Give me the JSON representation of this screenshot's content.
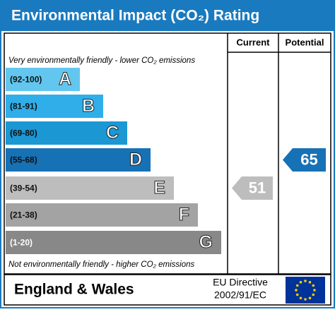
{
  "title": "Environmental Impact (CO₂) Rating",
  "columns": {
    "current": "Current",
    "potential": "Potential"
  },
  "top_note": "Very environmentally friendly - lower CO₂ emissions",
  "bottom_note": "Not environmentally friendly - higher CO₂ emissions",
  "bands": [
    {
      "range": "(92-100)",
      "letter": "A",
      "color": "#63c6ef"
    },
    {
      "range": "(81-91)",
      "letter": "B",
      "color": "#2faeea"
    },
    {
      "range": "(69-80)",
      "letter": "C",
      "color": "#1b97d4"
    },
    {
      "range": "(55-68)",
      "letter": "D",
      "color": "#1771b5"
    },
    {
      "range": "(39-54)",
      "letter": "E",
      "color": "#bdbdbd"
    },
    {
      "range": "(21-38)",
      "letter": "F",
      "color": "#a3a3a3"
    },
    {
      "range": "(1-20)",
      "letter": "G",
      "color": "#888888"
    }
  ],
  "current": {
    "value": 51,
    "color": "#bdbdbd"
  },
  "potential": {
    "value": 65,
    "color": "#1771b5"
  },
  "footer": {
    "region": "England & Wales",
    "directive_line1": "EU Directive",
    "directive_line2": "2002/91/EC"
  }
}
